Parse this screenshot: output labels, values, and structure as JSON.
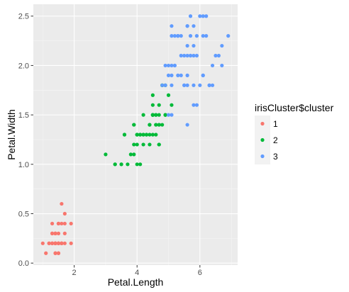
{
  "chart_data": {
    "type": "scatter",
    "xlabel": "Petal.Length",
    "ylabel": "Petal.Width",
    "xlim": [
      0.7,
      7.2
    ],
    "ylim": [
      -0.02,
      2.62
    ],
    "x_ticks": [
      2,
      4,
      6
    ],
    "y_ticks": [
      0.0,
      0.5,
      1.0,
      1.5,
      2.0,
      2.5
    ],
    "x_tick_labels": [
      "2",
      "4",
      "6"
    ],
    "y_tick_labels": [
      "0.0",
      "0.5",
      "1.0",
      "1.5",
      "2.0",
      "2.5"
    ],
    "grid": true,
    "legend": {
      "title": "irisCluster$cluster",
      "position": "right"
    },
    "colors": {
      "panel_background": "#ebebeb",
      "grid_major": "#ffffff",
      "series": [
        "#f8766d",
        "#00ba38",
        "#619cff"
      ]
    },
    "series": [
      {
        "name": "1",
        "points": [
          [
            1.4,
            0.2
          ],
          [
            1.4,
            0.2
          ],
          [
            1.3,
            0.2
          ],
          [
            1.5,
            0.2
          ],
          [
            1.4,
            0.2
          ],
          [
            1.7,
            0.4
          ],
          [
            1.4,
            0.3
          ],
          [
            1.5,
            0.2
          ],
          [
            1.4,
            0.2
          ],
          [
            1.5,
            0.1
          ],
          [
            1.5,
            0.2
          ],
          [
            1.6,
            0.2
          ],
          [
            1.4,
            0.1
          ],
          [
            1.1,
            0.1
          ],
          [
            1.2,
            0.2
          ],
          [
            1.5,
            0.4
          ],
          [
            1.3,
            0.4
          ],
          [
            1.4,
            0.3
          ],
          [
            1.7,
            0.3
          ],
          [
            1.5,
            0.3
          ],
          [
            1.7,
            0.2
          ],
          [
            1.5,
            0.4
          ],
          [
            1.0,
            0.2
          ],
          [
            1.7,
            0.5
          ],
          [
            1.9,
            0.2
          ],
          [
            1.6,
            0.2
          ],
          [
            1.6,
            0.4
          ],
          [
            1.5,
            0.2
          ],
          [
            1.4,
            0.2
          ],
          [
            1.6,
            0.2
          ],
          [
            1.6,
            0.2
          ],
          [
            1.5,
            0.4
          ],
          [
            1.5,
            0.1
          ],
          [
            1.4,
            0.2
          ],
          [
            1.5,
            0.2
          ],
          [
            1.2,
            0.2
          ],
          [
            1.3,
            0.2
          ],
          [
            1.4,
            0.1
          ],
          [
            1.3,
            0.2
          ],
          [
            1.5,
            0.2
          ],
          [
            1.3,
            0.3
          ],
          [
            1.3,
            0.3
          ],
          [
            1.3,
            0.2
          ],
          [
            1.6,
            0.6
          ],
          [
            1.9,
            0.4
          ],
          [
            1.4,
            0.3
          ],
          [
            1.6,
            0.2
          ],
          [
            1.4,
            0.2
          ],
          [
            1.5,
            0.2
          ],
          [
            1.4,
            0.2
          ]
        ]
      },
      {
        "name": "2",
        "points": [
          [
            4.7,
            1.4
          ],
          [
            4.5,
            1.5
          ],
          [
            4.9,
            1.5
          ],
          [
            4.0,
            1.3
          ],
          [
            4.6,
            1.5
          ],
          [
            4.5,
            1.3
          ],
          [
            4.7,
            1.6
          ],
          [
            3.3,
            1.0
          ],
          [
            4.6,
            1.3
          ],
          [
            3.9,
            1.4
          ],
          [
            3.5,
            1.0
          ],
          [
            4.2,
            1.5
          ],
          [
            4.0,
            1.0
          ],
          [
            4.7,
            1.4
          ],
          [
            3.6,
            1.3
          ],
          [
            4.4,
            1.4
          ],
          [
            4.5,
            1.5
          ],
          [
            4.1,
            1.0
          ],
          [
            4.5,
            1.5
          ],
          [
            3.9,
            1.1
          ],
          [
            4.8,
            1.8
          ],
          [
            4.0,
            1.3
          ],
          [
            4.9,
            1.5
          ],
          [
            4.7,
            1.2
          ],
          [
            4.3,
            1.3
          ],
          [
            4.4,
            1.4
          ],
          [
            4.8,
            1.4
          ],
          [
            4.5,
            1.5
          ],
          [
            3.5,
            1.0
          ],
          [
            3.8,
            1.1
          ],
          [
            3.7,
            1.0
          ],
          [
            3.9,
            1.2
          ],
          [
            5.1,
            1.6
          ],
          [
            4.5,
            1.5
          ],
          [
            4.5,
            1.6
          ],
          [
            4.7,
            1.5
          ],
          [
            4.4,
            1.3
          ],
          [
            4.1,
            1.3
          ],
          [
            4.0,
            1.3
          ],
          [
            4.4,
            1.2
          ],
          [
            4.6,
            1.4
          ],
          [
            4.0,
            1.2
          ],
          [
            3.3,
            1.0
          ],
          [
            4.2,
            1.3
          ],
          [
            4.2,
            1.2
          ],
          [
            4.2,
            1.3
          ],
          [
            4.3,
            1.3
          ],
          [
            3.0,
            1.1
          ],
          [
            4.1,
            1.3
          ],
          [
            4.5,
            1.7
          ],
          [
            4.9,
            1.5
          ],
          [
            4.8,
            1.8
          ],
          [
            4.9,
            1.8
          ],
          [
            5.0,
            1.7
          ],
          [
            4.7,
            1.2
          ],
          [
            4.6,
            1.4
          ],
          [
            3.6,
            1.3
          ],
          [
            3.9,
            1.4
          ],
          [
            4.6,
            1.5
          ],
          [
            4.4,
            1.4
          ]
        ]
      },
      {
        "name": "3",
        "points": [
          [
            6.0,
            2.5
          ],
          [
            5.1,
            1.9
          ],
          [
            5.9,
            2.1
          ],
          [
            5.6,
            1.8
          ],
          [
            5.8,
            2.2
          ],
          [
            6.6,
            2.1
          ],
          [
            6.3,
            1.8
          ],
          [
            5.8,
            1.8
          ],
          [
            6.1,
            2.5
          ],
          [
            5.1,
            2.0
          ],
          [
            5.3,
            1.9
          ],
          [
            5.5,
            2.1
          ],
          [
            5.0,
            2.0
          ],
          [
            5.1,
            2.4
          ],
          [
            5.3,
            2.3
          ],
          [
            5.5,
            1.8
          ],
          [
            6.7,
            2.2
          ],
          [
            6.9,
            2.3
          ],
          [
            5.0,
            1.5
          ],
          [
            5.7,
            2.3
          ],
          [
            4.9,
            2.0
          ],
          [
            6.7,
            2.0
          ],
          [
            4.9,
            1.8
          ],
          [
            5.7,
            2.1
          ],
          [
            6.0,
            1.8
          ],
          [
            5.6,
            2.1
          ],
          [
            5.8,
            1.6
          ],
          [
            6.1,
            1.9
          ],
          [
            6.4,
            2.0
          ],
          [
            5.6,
            2.2
          ],
          [
            5.1,
            1.5
          ],
          [
            5.6,
            1.4
          ],
          [
            6.1,
            2.3
          ],
          [
            5.6,
            2.4
          ],
          [
            5.5,
            1.8
          ],
          [
            5.4,
            2.1
          ],
          [
            5.6,
            2.4
          ],
          [
            5.1,
            2.3
          ],
          [
            5.9,
            2.3
          ],
          [
            5.7,
            2.5
          ],
          [
            5.2,
            2.3
          ],
          [
            5.0,
            1.9
          ],
          [
            5.2,
            2.0
          ],
          [
            5.4,
            2.3
          ],
          [
            5.1,
            1.8
          ],
          [
            6.2,
            2.3
          ],
          [
            5.3,
            2.3
          ],
          [
            5.2,
            2.0
          ],
          [
            6.1,
            1.9
          ],
          [
            4.8,
            1.8
          ],
          [
            5.4,
            1.9
          ],
          [
            6.4,
            1.8
          ],
          [
            5.7,
            2.1
          ],
          [
            5.8,
            2.4
          ],
          [
            6.2,
            2.5
          ],
          [
            6.5,
            2.1
          ],
          [
            5.9,
            1.6
          ],
          [
            5.6,
            1.9
          ],
          [
            6.3,
            1.8
          ],
          [
            5.8,
            2.1
          ]
        ]
      }
    ]
  }
}
